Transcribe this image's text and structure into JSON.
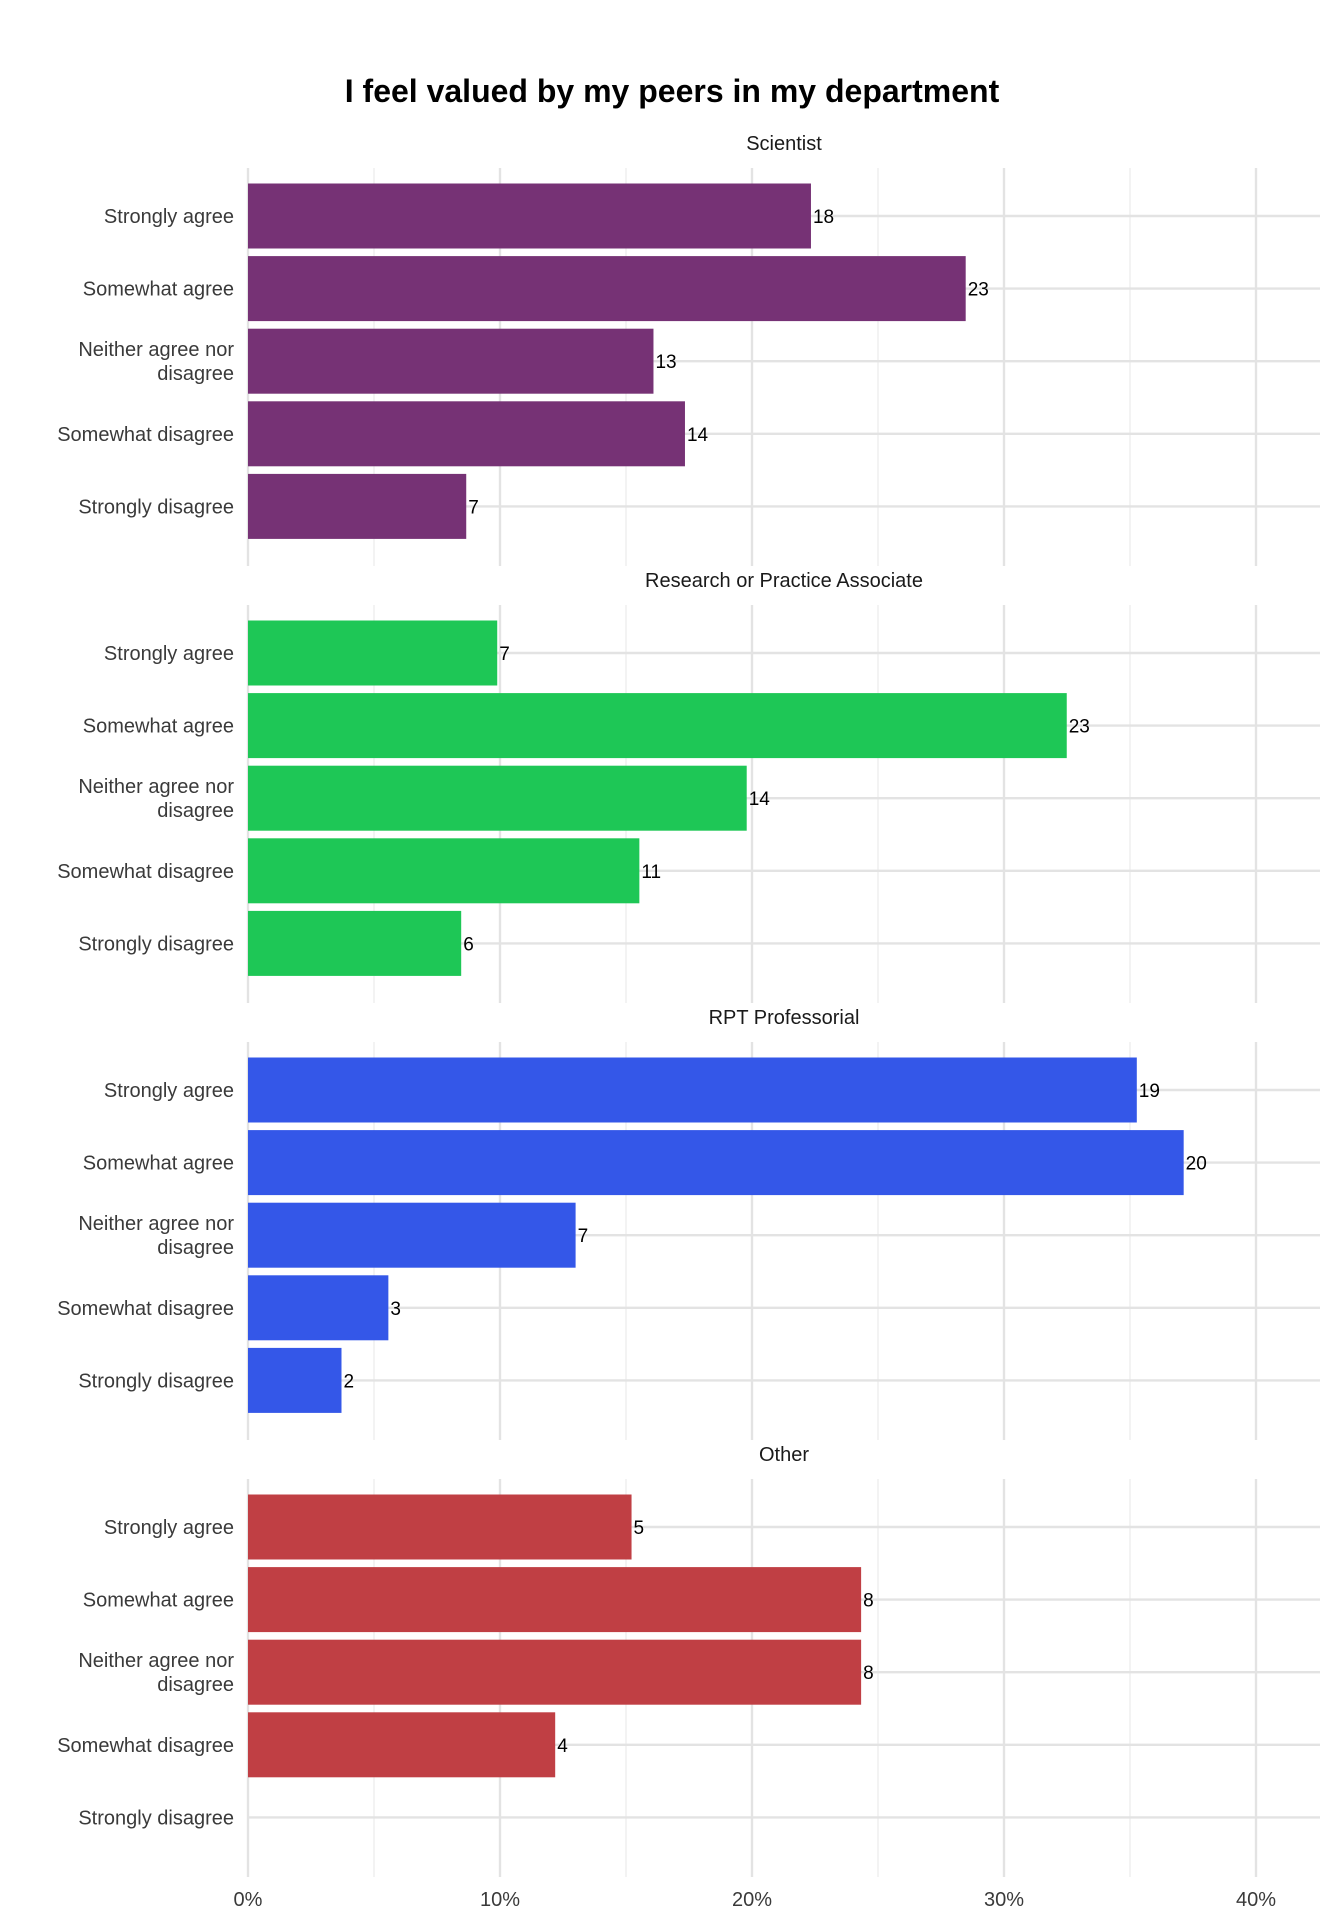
{
  "chart_data": {
    "type": "bar",
    "orientation": "horizontal",
    "title": "I feel valued by my peers in my department",
    "categories": [
      "Strongly agree",
      "Somewhat agree",
      "Neither agree nor disagree",
      "Somewhat disagree",
      "Strongly disagree"
    ],
    "category_label_lines": [
      [
        "Strongly agree"
      ],
      [
        "Somewhat agree"
      ],
      [
        "Neither agree nor",
        "disagree"
      ],
      [
        "Somewhat disagree"
      ],
      [
        "Strongly disagree"
      ]
    ],
    "xlim": [
      0,
      0.425
    ],
    "x_ticks": [
      {
        "value": 0,
        "label": "0%"
      },
      {
        "value": 0.1,
        "label": "10%"
      },
      {
        "value": 0.2,
        "label": "20%"
      },
      {
        "value": 0.3,
        "label": "30%"
      },
      {
        "value": 0.4,
        "label": "40%"
      }
    ],
    "grid": true,
    "legend": "none",
    "panels": [
      {
        "title": "Scientist",
        "color": "#763275",
        "percent_values": [
          0.2234,
          0.2848,
          0.1609,
          0.1734,
          0.0866
        ],
        "counts": [
          "18",
          "23",
          "13",
          "14",
          "7"
        ]
      },
      {
        "title": "Research or Practice Associate",
        "color": "#1ec756",
        "percent_values": [
          0.0989,
          0.3249,
          0.1979,
          0.1553,
          0.0846
        ],
        "counts": [
          "7",
          "23",
          "14",
          "11",
          "6"
        ]
      },
      {
        "title": "RPT Professorial",
        "color": "#3457e8",
        "percent_values": [
          0.3527,
          0.3713,
          0.13,
          0.0557,
          0.0371
        ],
        "counts": [
          "19",
          "20",
          "7",
          "3",
          "2"
        ]
      },
      {
        "title": "Other",
        "color": "#c03f44",
        "percent_values": [
          0.1522,
          0.2433,
          0.2433,
          0.1219,
          0
        ],
        "counts": [
          "5",
          "8",
          "8",
          "4",
          ""
        ]
      }
    ]
  }
}
